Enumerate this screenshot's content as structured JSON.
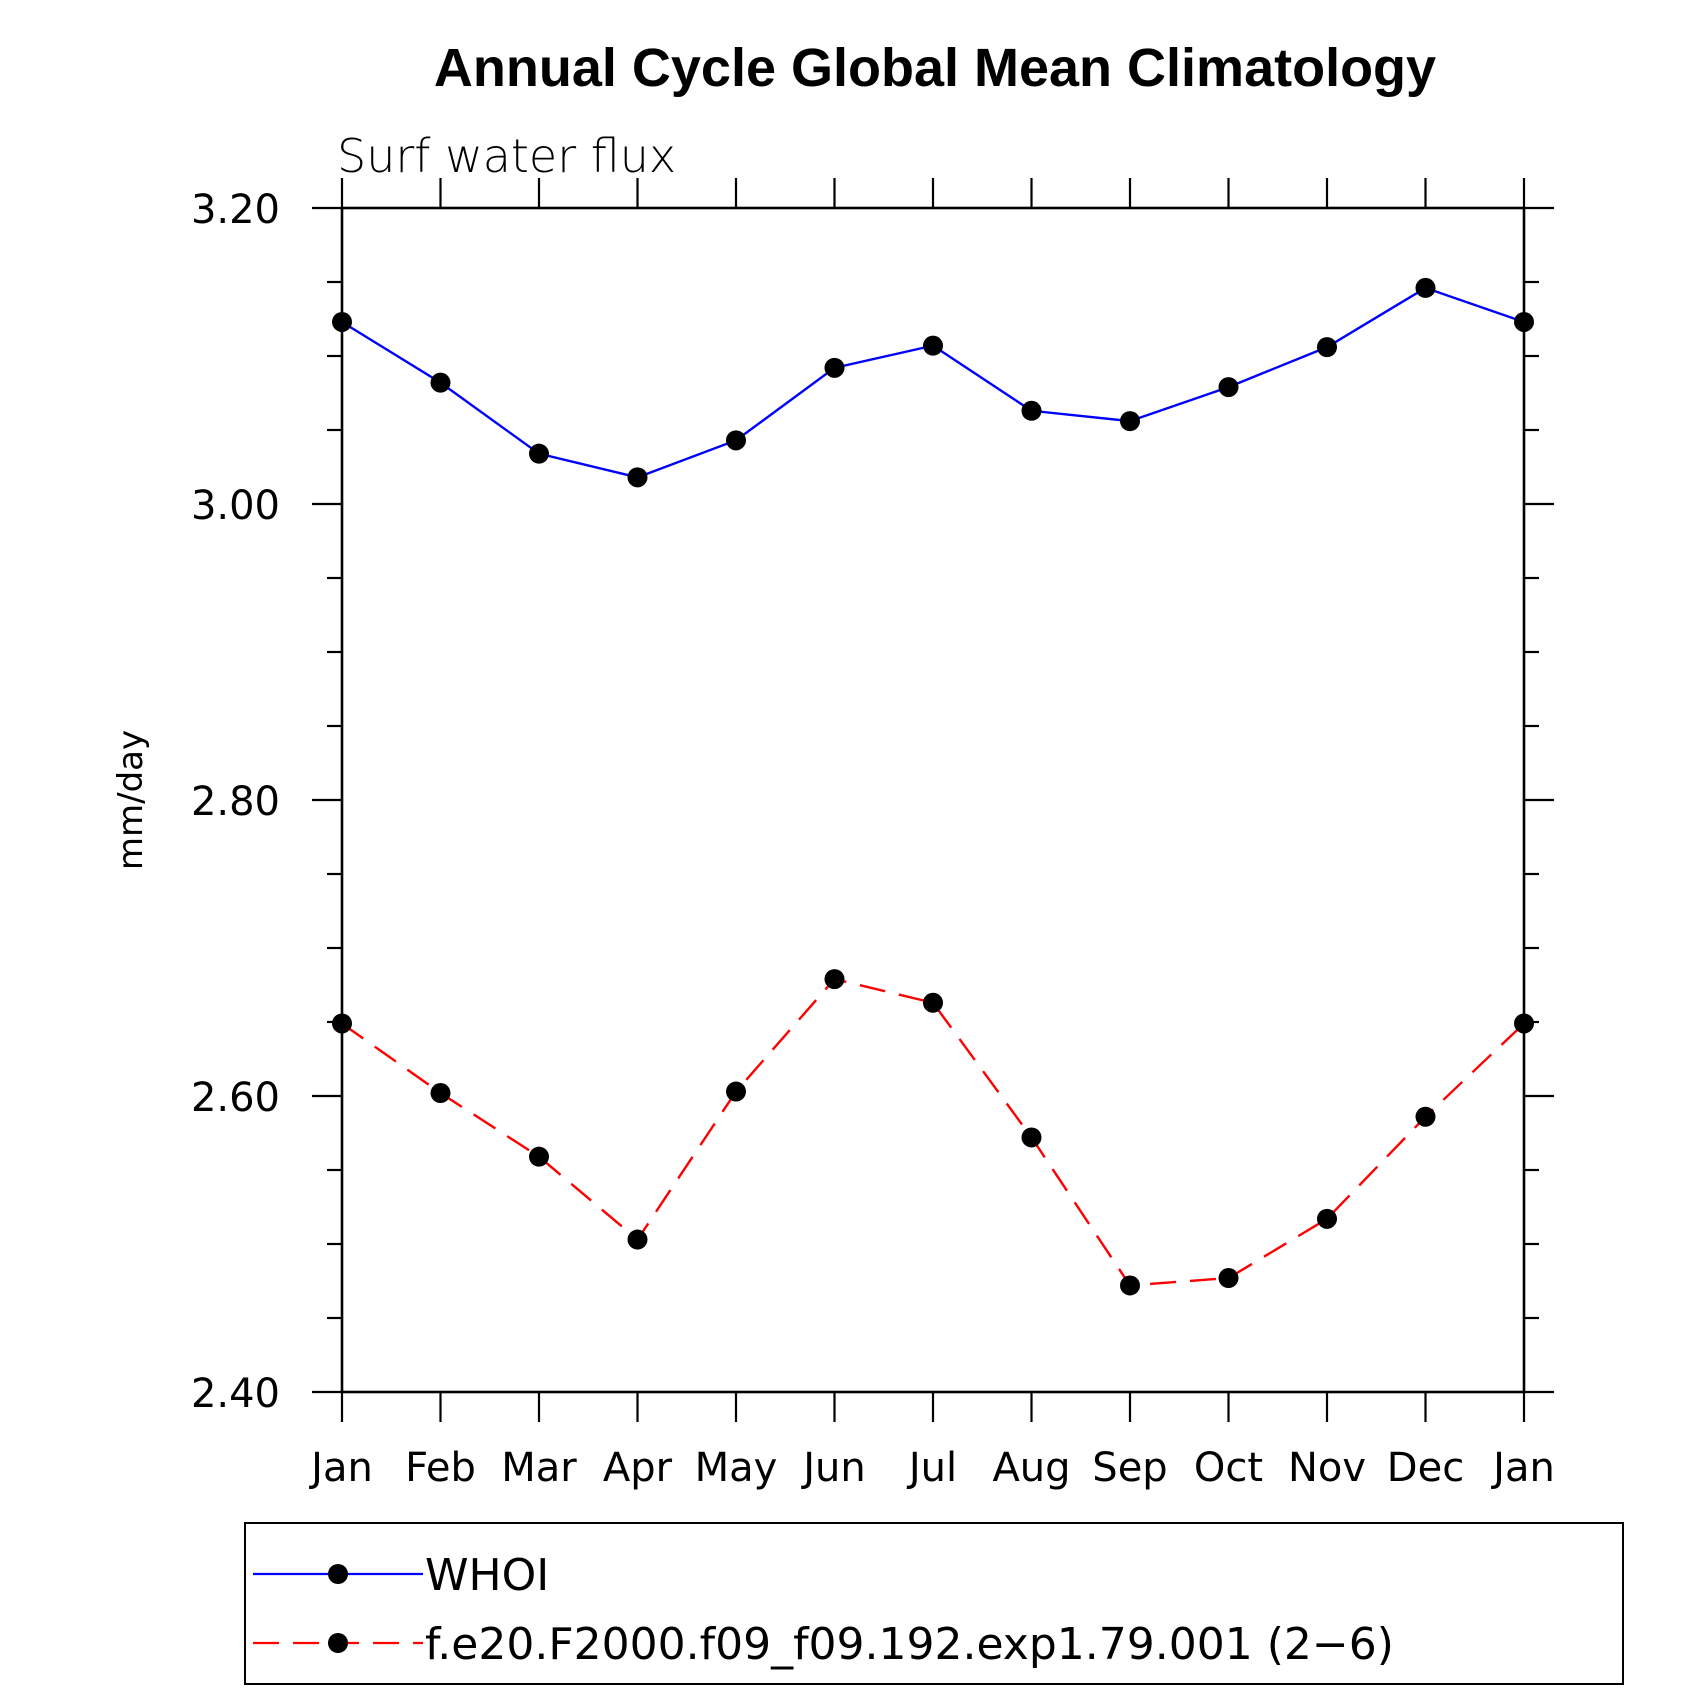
{
  "chart_data": {
    "type": "line",
    "title": "Annual Cycle Global Mean Climatology",
    "subtitle": "Surf water flux",
    "xlabel": "",
    "ylabel": "mm/day",
    "categories": [
      "Jan",
      "Feb",
      "Mar",
      "Apr",
      "May",
      "Jun",
      "Jul",
      "Aug",
      "Sep",
      "Oct",
      "Nov",
      "Dec",
      "Jan"
    ],
    "ylim": [
      2.4,
      3.2
    ],
    "yticks": [
      "2.40",
      "2.60",
      "2.80",
      "3.00",
      "3.20"
    ],
    "ytick_values": [
      2.4,
      2.6,
      2.8,
      3.0,
      3.2
    ],
    "y_minor_step": 0.05,
    "grid": false,
    "legend_position": "bottom",
    "series": [
      {
        "name": "WHOI",
        "color": "#0000ff",
        "line_style": "solid",
        "marker": "filled-circle",
        "values": [
          3.123,
          3.082,
          3.034,
          3.018,
          3.043,
          3.092,
          3.107,
          3.063,
          3.056,
          3.079,
          3.106,
          3.146,
          3.123
        ]
      },
      {
        "name": "f.e20.F2000.f09_f09.192.exp1.79.001 (2−6)",
        "color": "#ff0000",
        "line_style": "dashed",
        "marker": "filled-circle",
        "values": [
          2.649,
          2.602,
          2.559,
          2.503,
          2.603,
          2.679,
          2.663,
          2.572,
          2.472,
          2.477,
          2.517,
          2.586,
          2.649
        ]
      }
    ]
  }
}
